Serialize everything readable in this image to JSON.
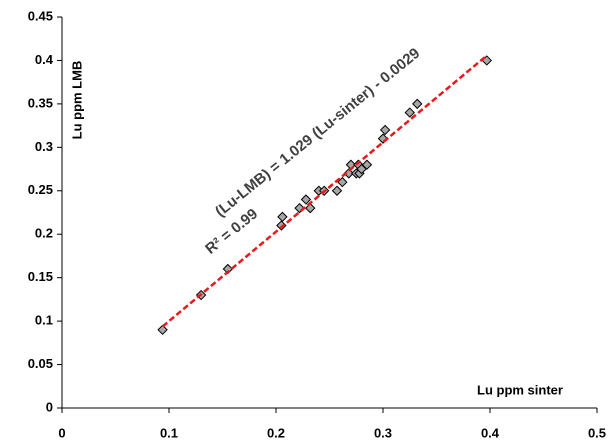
{
  "chart_data": {
    "type": "scatter",
    "x_label": "Lu ppm sinter",
    "y_label": "Lu ppm LMB",
    "annotations": [
      "(Lu-LMB) = 1.029 (Lu-sinter) - 0.0029",
      "R² = 0.99"
    ],
    "x": [
      0.094,
      0.13,
      0.155,
      0.205,
      0.206,
      0.222,
      0.228,
      0.232,
      0.24,
      0.245,
      0.257,
      0.262,
      0.268,
      0.27,
      0.275,
      0.277,
      0.278,
      0.28,
      0.285,
      0.3,
      0.302,
      0.325,
      0.332,
      0.397
    ],
    "values": [
      0.09,
      0.13,
      0.16,
      0.21,
      0.22,
      0.23,
      0.24,
      0.23,
      0.25,
      0.25,
      0.25,
      0.26,
      0.27,
      0.28,
      0.27,
      0.28,
      0.27,
      0.275,
      0.28,
      0.31,
      0.32,
      0.34,
      0.35,
      0.4
    ],
    "color": "#a6a6a6",
    "trendline": {
      "x": [
        0.094,
        0.397
      ],
      "values": [
        0.0938,
        0.4056
      ],
      "color": "#e8191c"
    },
    "xlim": [
      0,
      0.5
    ],
    "xticks": [
      0,
      0.1,
      0.2,
      0.3,
      0.4,
      0.5
    ],
    "ylim": [
      0,
      0.45
    ],
    "yticks": [
      0,
      0.05,
      0.1,
      0.15,
      0.2,
      0.25,
      0.3,
      0.35,
      0.4,
      0.45
    ],
    "grid": false
  }
}
